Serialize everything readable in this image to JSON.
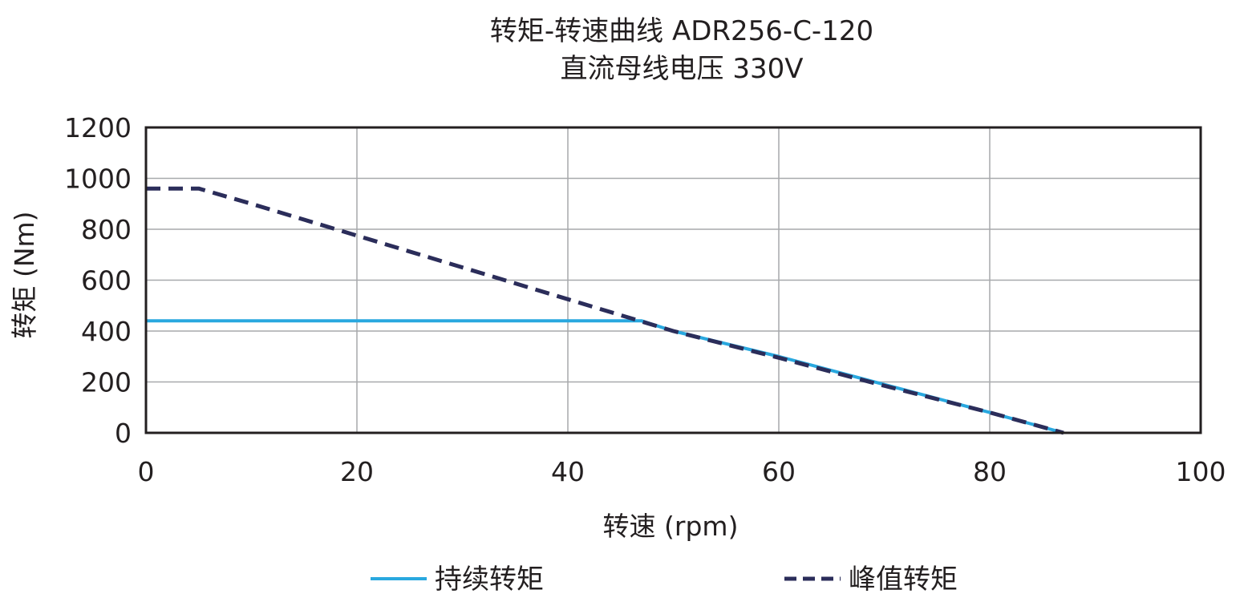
{
  "chart_data": {
    "type": "line",
    "title": "转矩-转速曲线 ADR256-C-120",
    "subtitle": "直流母线电压 330V",
    "xlabel": "转速 (rpm)",
    "ylabel": "转矩 (Nm)",
    "xlim": [
      0,
      100
    ],
    "ylim": [
      0,
      1200
    ],
    "xticks": [
      0,
      20,
      40,
      60,
      80,
      100
    ],
    "yticks": [
      0,
      200,
      400,
      600,
      800,
      1000,
      1200
    ],
    "grid": true,
    "legend_position": "bottom",
    "series": [
      {
        "name": "持续转矩",
        "style": "solid",
        "color": "#29a8df",
        "x": [
          0,
          47,
          50,
          60,
          70,
          80,
          87
        ],
        "y": [
          440,
          440,
          400,
          300,
          190,
          80,
          0
        ]
      },
      {
        "name": "峰值转矩",
        "style": "dashed",
        "color": "#2b2d5a",
        "x": [
          0,
          5,
          10,
          20,
          30,
          40,
          50,
          60,
          70,
          80,
          87
        ],
        "y": [
          960,
          960,
          900,
          775,
          650,
          525,
          400,
          295,
          185,
          80,
          0
        ]
      }
    ]
  }
}
